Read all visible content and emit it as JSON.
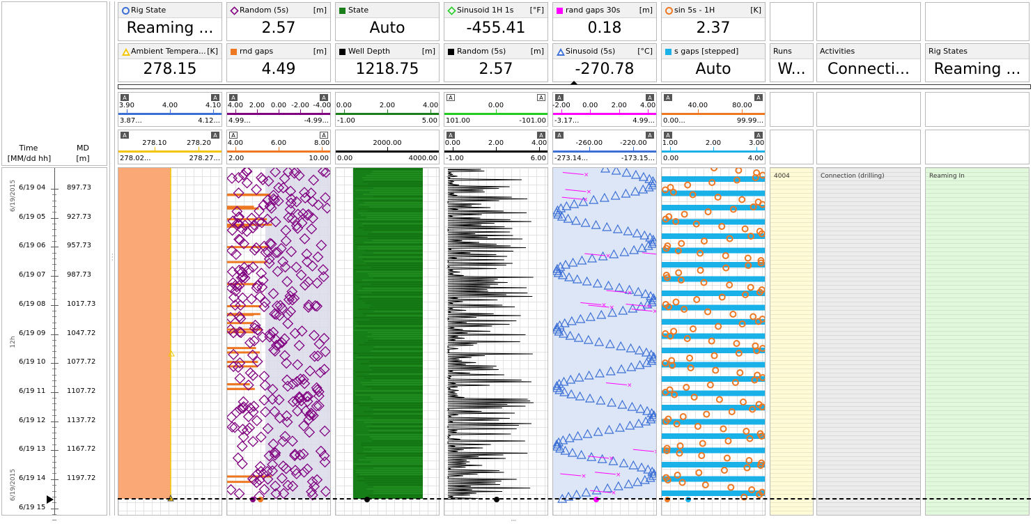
{
  "axis_header": {
    "time_label": "Time",
    "time_unit": "[MM/dd hh]",
    "md_label": "MD",
    "md_unit": "[m]"
  },
  "cards_row1": [
    {
      "name": "Rig State",
      "unit": "",
      "value": "Reaming ...",
      "marker": "circle",
      "color": "#3b6fd6"
    },
    {
      "name": "Random (5s)",
      "unit": "[m]",
      "value": "2.57",
      "marker": "diamond",
      "color": "#800080"
    },
    {
      "name": "State",
      "unit": "",
      "value": "Auto",
      "marker": "square",
      "color": "#1a7f1a"
    },
    {
      "name": "Sinusoid 1H 1s",
      "unit": "[°F]",
      "value": "-455.41",
      "marker": "diamond",
      "color": "#22cc22"
    },
    {
      "name": "rand gaps 30s",
      "unit": "[m]",
      "value": "0.18",
      "marker": "square",
      "color": "#ff00ff"
    },
    {
      "name": "sin 5s - 1H",
      "unit": "[K]",
      "value": "2.37",
      "marker": "circle",
      "color": "#ee7722"
    }
  ],
  "cards_row2": [
    {
      "name": "Ambient Tempera...",
      "unit": "[K]",
      "value": "278.15",
      "marker": "triangle",
      "color": "#f2c500"
    },
    {
      "name": "rnd gaps",
      "unit": "[m]",
      "value": "4.49",
      "marker": "square",
      "color": "#ee7722"
    },
    {
      "name": "Well Depth",
      "unit": "[m]",
      "value": "1218.75",
      "marker": "square",
      "color": "#000000"
    },
    {
      "name": "Random (5s)",
      "unit": "[m]",
      "value": "2.57",
      "marker": "square",
      "color": "#000000"
    },
    {
      "name": "Sinusoid (5s)",
      "unit": "[°C]",
      "value": "-270.78",
      "marker": "triangle",
      "color": "#3b6fd6"
    },
    {
      "name": "s gaps [stepped]",
      "unit": "",
      "value": "Auto",
      "marker": "square",
      "color": "#1ab0e8"
    }
  ],
  "cards_extra": [
    {
      "name": "Runs",
      "value": "W..."
    },
    {
      "name": "Activities",
      "value": "Connecti..."
    },
    {
      "name": "Rig States",
      "value": "Reaming ..."
    }
  ],
  "scales_row1": [
    {
      "color": "#3b6fd6",
      "ticks": [
        "3.90",
        "4.00",
        "4.10"
      ],
      "min": "3.87...",
      "max": "4.12...",
      "tag_left": "A",
      "tag_right": "A",
      "left_dark": true,
      "right_dark": true
    },
    {
      "color": "#800080",
      "ticks": [
        "4.00",
        "2.00",
        "0.00",
        "-2.00",
        "-4.00"
      ],
      "min": "4.99...",
      "max": "-4.99...",
      "tag_left": "A",
      "tag_right": "A",
      "left_dark": true,
      "right_dark": true
    },
    {
      "color": "#1a7f1a",
      "ticks": [
        "0.00",
        "2.00",
        "4.00"
      ],
      "min": "-1.00",
      "max": "5.00",
      "tag_left": "",
      "tag_right": "",
      "left_dark": false,
      "right_dark": false
    },
    {
      "color": "#22cc22",
      "ticks": [
        "0.00"
      ],
      "min": "101.00",
      "max": "-101.00",
      "tag_left": "A",
      "tag_right": "A",
      "left_dark": false,
      "right_dark": false
    },
    {
      "color": "#ff00ff",
      "ticks": [
        "-2.00",
        "0.00",
        "2.00",
        "4.00"
      ],
      "min": "-3.17...",
      "max": "4.99...",
      "tag_left": "A",
      "tag_right": "A",
      "left_dark": true,
      "right_dark": true
    },
    {
      "color": "#ee7722",
      "ticks": [
        "40.00",
        "80.00"
      ],
      "min": "0.00...",
      "max": "99.99...",
      "tag_left": "A",
      "tag_right": "A",
      "left_dark": true,
      "right_dark": true
    }
  ],
  "scales_row2": [
    {
      "color": "#f2c500",
      "ticks": [
        "278.10",
        "278.20"
      ],
      "min": "278.02...",
      "max": "278.27...",
      "tag_left": "A",
      "tag_right": "A",
      "left_dark": true,
      "right_dark": true
    },
    {
      "color": "#ee7722",
      "ticks": [
        "4.00",
        "6.00",
        "8.00"
      ],
      "min": "2.00",
      "max": "10.00",
      "tag_left": "A",
      "tag_right": "A",
      "left_dark": false,
      "right_dark": false
    },
    {
      "color": "#000000",
      "ticks": [
        "2000.00"
      ],
      "min": "0.00",
      "max": "4000.00",
      "tag_left": "",
      "tag_right": "",
      "left_dark": false,
      "right_dark": false
    },
    {
      "color": "#000000",
      "ticks": [
        "0.00",
        "2.00",
        "4.00"
      ],
      "min": "-1.00",
      "max": "6.00",
      "tag_left": "A",
      "tag_right": "A",
      "left_dark": true,
      "right_dark": true
    },
    {
      "color": "#3b6fd6",
      "ticks": [
        "-260.00",
        "-220.00"
      ],
      "min": "-273.14...",
      "max": "-173.15...",
      "tag_left": "A",
      "tag_right": "A",
      "left_dark": true,
      "right_dark": true
    },
    {
      "color": "#1ab0e8",
      "ticks": [
        "1.00",
        "2.00",
        "3.00"
      ],
      "min": "0.00",
      "max": "4.00",
      "tag_left": "A",
      "tag_right": "A",
      "left_dark": true,
      "right_dark": true
    }
  ],
  "depth_rows": [
    {
      "time": "6/19 04",
      "md": "897.73"
    },
    {
      "time": "6/19 05",
      "md": "927.73"
    },
    {
      "time": "6/19 06",
      "md": "957.73"
    },
    {
      "time": "6/19 07",
      "md": "987.73"
    },
    {
      "time": "6/19 08",
      "md": "1017.73"
    },
    {
      "time": "6/19 09",
      "md": "1047.72"
    },
    {
      "time": "6/19 10",
      "md": "1077.72"
    },
    {
      "time": "6/19 11",
      "md": "1107.72"
    },
    {
      "time": "6/19 12",
      "md": "1137.72"
    },
    {
      "time": "6/19 13",
      "md": "1167.72"
    },
    {
      "time": "6/19 14",
      "md": "1197.72"
    },
    {
      "time": "6/19 15",
      "md": ""
    }
  ],
  "side_dates": {
    "top": "6/19/2015",
    "middle": "12h",
    "bottom": "6/19/2015"
  },
  "text_tracks": [
    {
      "label": "4004",
      "bg": "#fffbd6"
    },
    {
      "label": "Connection (drilling)",
      "bg": "#ececec"
    },
    {
      "label": "Reaming In",
      "bg": "#e2f8dc"
    }
  ],
  "colors": {
    "orange_fill": "#f9a876",
    "purple": "#800080",
    "green": "#177f17",
    "blue": "#3b6fd6",
    "cyan": "#1ab0e8",
    "magenta": "#ff00ff",
    "orange": "#ee7722"
  },
  "icons": {
    "splitter_up": "triangle-up-icon",
    "current_depth": "triangle-right-icon",
    "resize": "grip-dots-icon"
  }
}
